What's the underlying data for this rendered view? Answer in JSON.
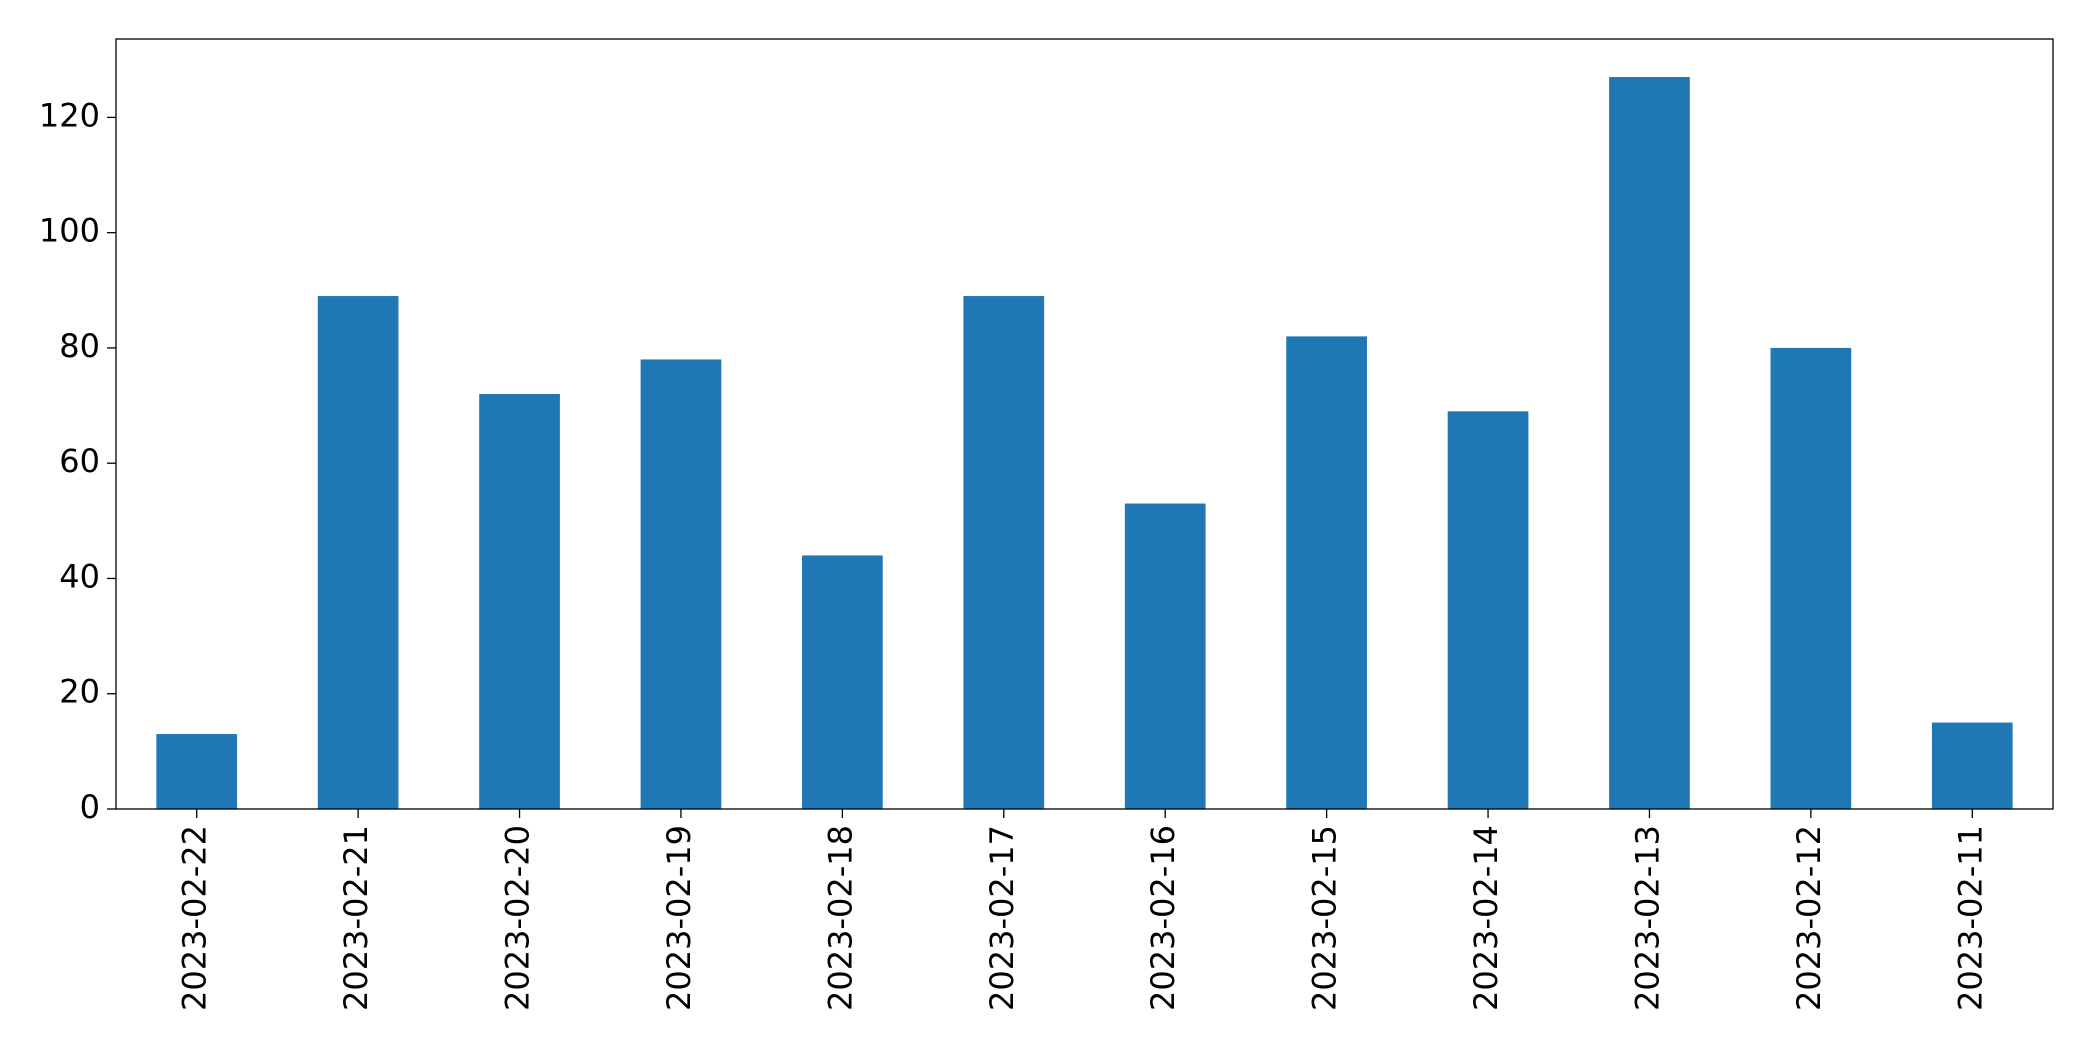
{
  "chart_data": {
    "type": "bar",
    "categories": [
      "2023-02-22",
      "2023-02-21",
      "2023-02-20",
      "2023-02-19",
      "2023-02-18",
      "2023-02-17",
      "2023-02-16",
      "2023-02-15",
      "2023-02-14",
      "2023-02-13",
      "2023-02-12",
      "2023-02-11"
    ],
    "values": [
      13,
      89,
      72,
      78,
      44,
      89,
      53,
      82,
      69,
      127,
      80,
      15
    ],
    "color": "#1f77b4",
    "ylim": [
      0,
      133.6
    ],
    "yticks": [
      0,
      20,
      40,
      60,
      80,
      100,
      120
    ],
    "grid": false
  }
}
